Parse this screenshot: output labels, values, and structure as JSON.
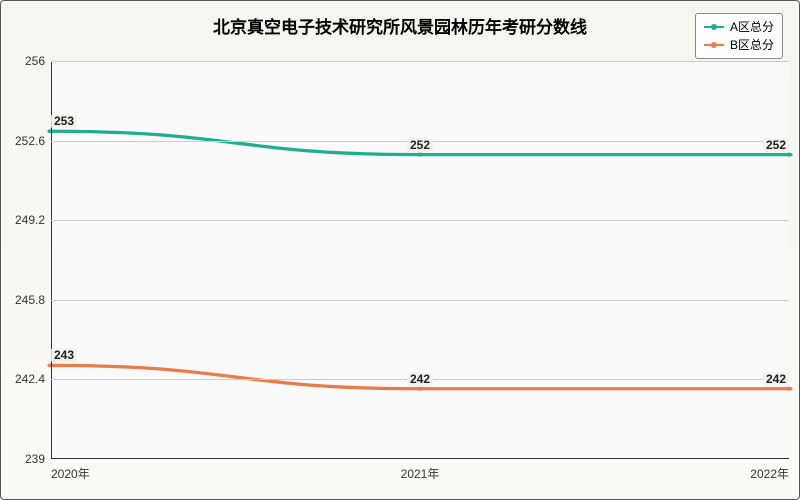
{
  "chart": {
    "type": "line",
    "title": "北京真空电子技术研究所风景园林历年考研分数线",
    "title_fontsize": 17,
    "background_gradient": [
      "#f6f5f0",
      "#fafaf7"
    ],
    "plot_background": "#fafafa",
    "grid_color": "#cccccc",
    "axis_color": "#333333",
    "ylim": [
      239,
      256
    ],
    "yticks": [
      239,
      242.4,
      245.8,
      249.2,
      252.6,
      256
    ],
    "xcategories": [
      "2020年",
      "2021年",
      "2022年"
    ],
    "series": [
      {
        "name": "A区总分",
        "color": "#1fae8e",
        "values": [
          253,
          252,
          252
        ],
        "line_width": 1.5,
        "marker": "circle",
        "marker_size": 5
      },
      {
        "name": "B区总分",
        "color": "#e87c4a",
        "values": [
          243,
          242,
          242
        ],
        "line_width": 1.5,
        "marker": "circle",
        "marker_size": 5
      }
    ],
    "legend": {
      "position": "top-right",
      "background": "#ffffff",
      "border_color": "#888888",
      "fontsize": 12
    },
    "label_fontsize": 12
  }
}
